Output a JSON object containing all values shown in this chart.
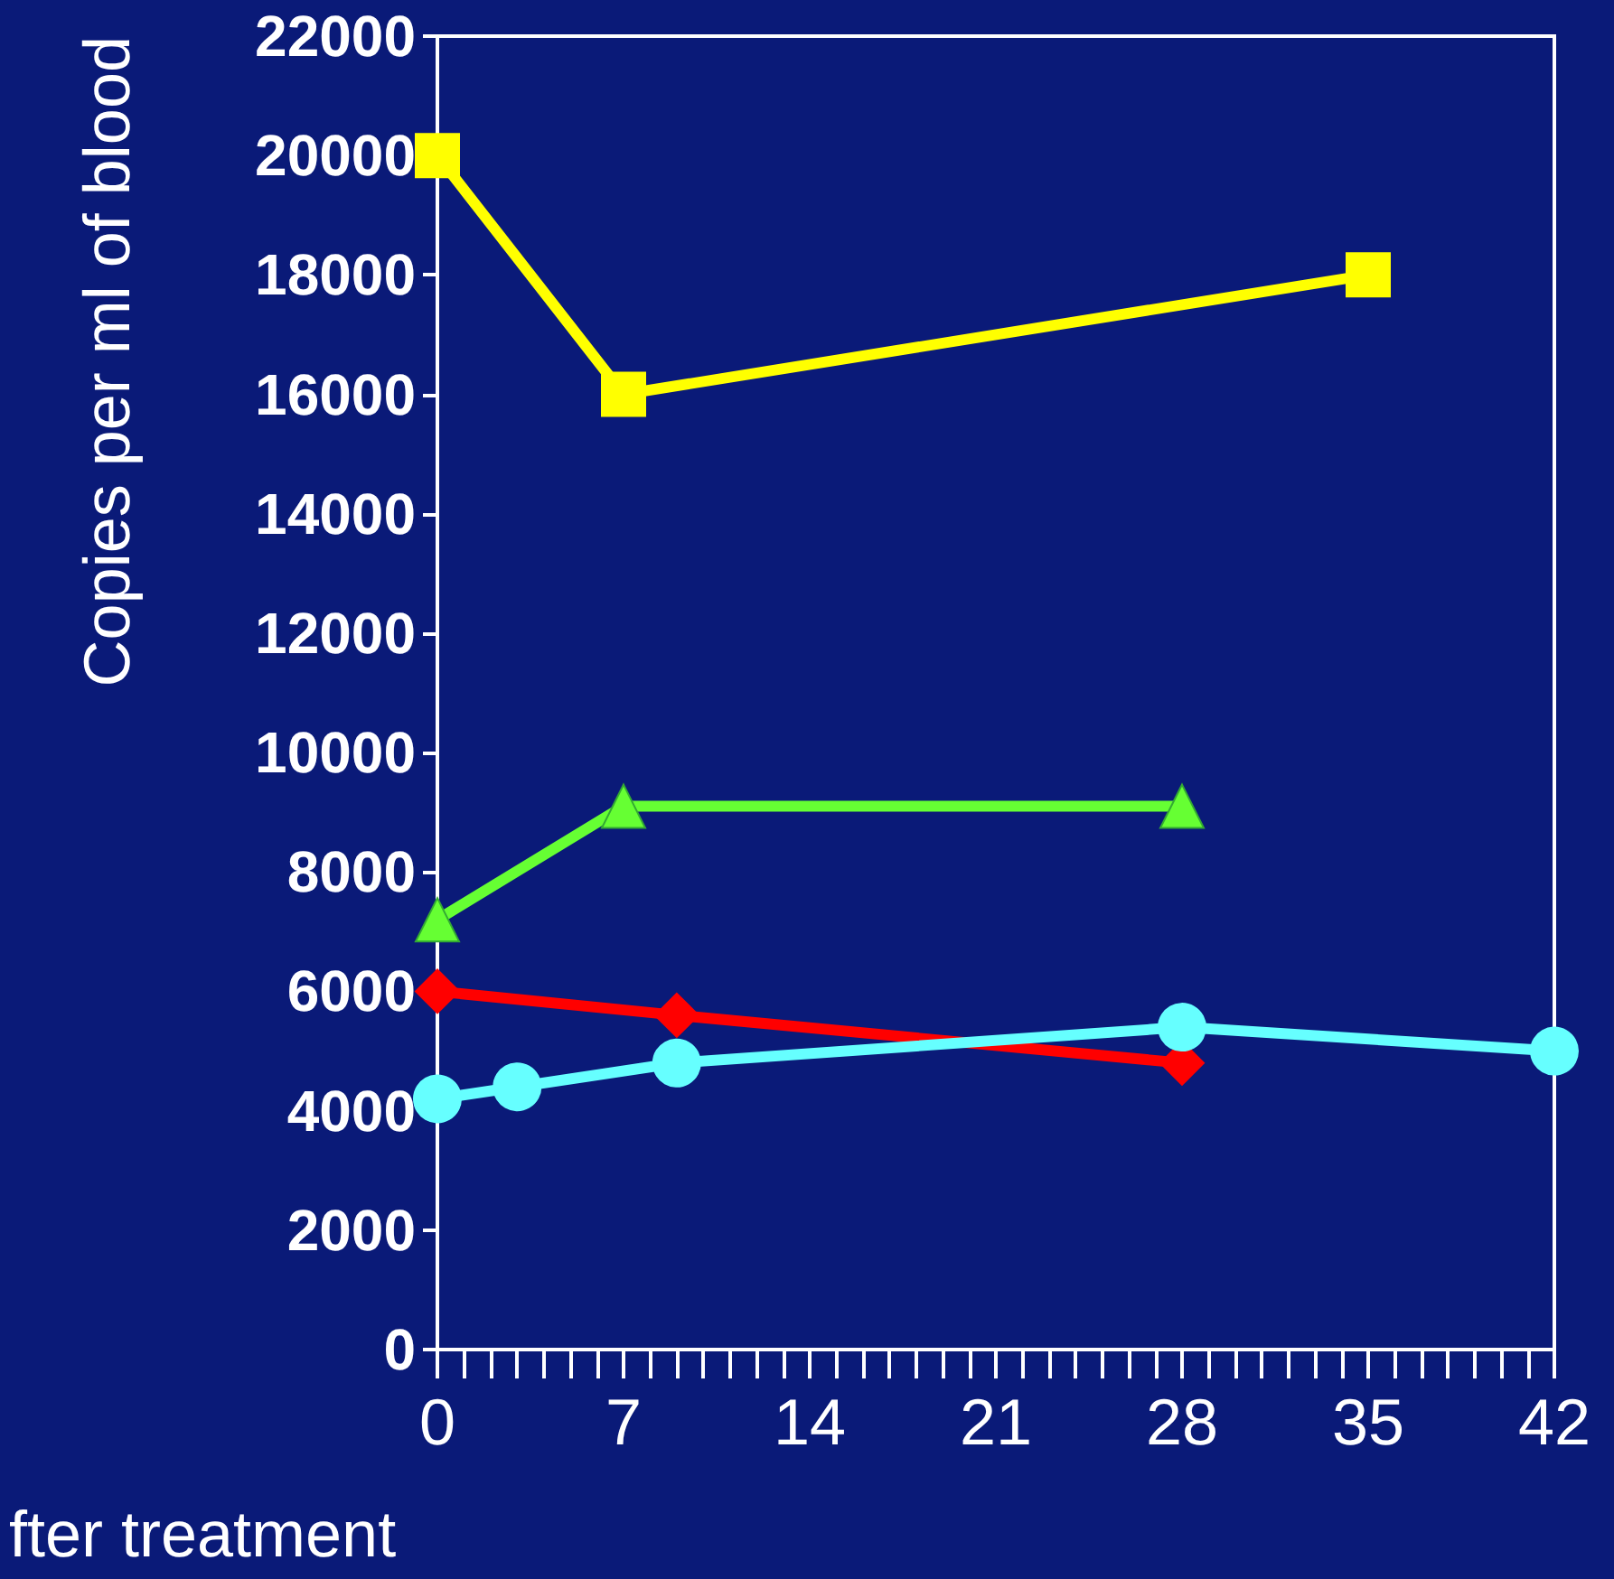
{
  "chart_data": {
    "type": "line",
    "xlabel": "fter treatment",
    "ylabel": "Copies per ml of blood",
    "xlim": [
      0,
      42
    ],
    "xticks": [
      0,
      {
        "value": 1,
        "label": null
      },
      {
        "value": 2,
        "label": null
      },
      {
        "value": 3,
        "label": null
      },
      {
        "value": 4,
        "label": null
      },
      {
        "value": 5,
        "label": null
      },
      {
        "value": 6,
        "label": null
      },
      7,
      {
        "value": 8,
        "label": null
      },
      {
        "value": 9,
        "label": null
      },
      {
        "value": 10,
        "label": null
      },
      {
        "value": 11,
        "label": null
      },
      {
        "value": 12,
        "label": null
      },
      {
        "value": 13,
        "label": null
      },
      14,
      {
        "value": 15,
        "label": null
      },
      {
        "value": 16,
        "label": null
      },
      {
        "value": 17,
        "label": null
      },
      {
        "value": 18,
        "label": null
      },
      {
        "value": 19,
        "label": null
      },
      {
        "value": 20,
        "label": null
      },
      21,
      {
        "value": 22,
        "label": null
      },
      {
        "value": 23,
        "label": null
      },
      {
        "value": 24,
        "label": null
      },
      {
        "value": 25,
        "label": null
      },
      {
        "value": 26,
        "label": null
      },
      {
        "value": 27,
        "label": null
      },
      28,
      {
        "value": 29,
        "label": null
      },
      {
        "value": 30,
        "label": null
      },
      {
        "value": 31,
        "label": null
      },
      {
        "value": 32,
        "label": null
      },
      {
        "value": 33,
        "label": null
      },
      {
        "value": 34,
        "label": null
      },
      35,
      {
        "value": 36,
        "label": null
      },
      {
        "value": 37,
        "label": null
      },
      {
        "value": 38,
        "label": null
      },
      {
        "value": 39,
        "label": null
      },
      {
        "value": 40,
        "label": null
      },
      {
        "value": 41,
        "label": null
      },
      42
    ],
    "ylim": [
      0,
      22000
    ],
    "yticks": [
      0,
      2000,
      4000,
      6000,
      8000,
      10000,
      12000,
      14000,
      16000,
      18000,
      20000,
      22000
    ],
    "line_style": "solid",
    "series": [
      {
        "color": "#ffff00",
        "marker": "square",
        "x": [
          0,
          7,
          35
        ],
        "values": [
          20000,
          16000,
          18000
        ]
      },
      {
        "color": "#66ff33",
        "marker": "triangle",
        "x": [
          0,
          7,
          28
        ],
        "values": [
          7200,
          9100,
          9100
        ]
      },
      {
        "color": "#ff0000",
        "marker": "diamond",
        "x": [
          0,
          9,
          28
        ],
        "values": [
          6000,
          5600,
          4800
        ]
      },
      {
        "color": "#66ffff",
        "marker": "circle",
        "x": [
          0,
          3,
          9,
          28,
          42
        ],
        "values": [
          4200,
          4400,
          4800,
          5400,
          5000
        ]
      }
    ]
  }
}
